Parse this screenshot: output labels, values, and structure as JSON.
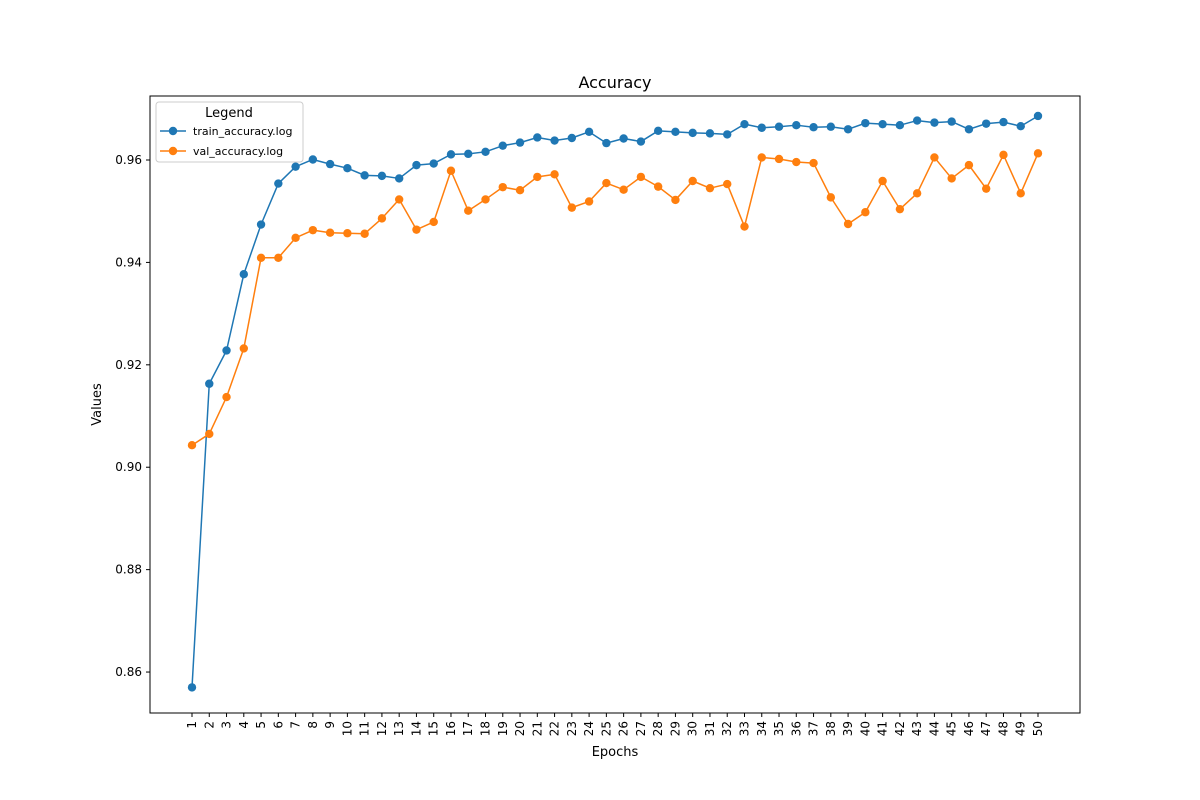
{
  "chart_data": {
    "type": "line",
    "title": "Accuracy",
    "xlabel": "Epochs",
    "ylabel": "Values",
    "x": [
      1,
      2,
      3,
      4,
      5,
      6,
      7,
      8,
      9,
      10,
      11,
      12,
      13,
      14,
      15,
      16,
      17,
      18,
      19,
      20,
      21,
      22,
      23,
      24,
      25,
      26,
      27,
      28,
      29,
      30,
      31,
      32,
      33,
      34,
      35,
      36,
      37,
      38,
      39,
      40,
      41,
      42,
      43,
      44,
      45,
      46,
      47,
      48,
      49,
      50
    ],
    "ylim": [
      0.852,
      0.9725
    ],
    "yticks": [
      "0.86",
      "0.88",
      "0.90",
      "0.92",
      "0.94",
      "0.96"
    ],
    "grid": false,
    "markers": "circle",
    "legend": {
      "title": "Legend",
      "position": "top-left"
    },
    "series": [
      {
        "name": "train_accuracy.log",
        "color": "#1f77b4",
        "values": [
          0.857,
          0.9163,
          0.9228,
          0.9377,
          0.9474,
          0.9554,
          0.9587,
          0.9601,
          0.9592,
          0.9584,
          0.957,
          0.9569,
          0.9564,
          0.959,
          0.9593,
          0.9611,
          0.9612,
          0.9616,
          0.9628,
          0.9634,
          0.9644,
          0.9638,
          0.9643,
          0.9655,
          0.9633,
          0.9642,
          0.9636,
          0.9657,
          0.9655,
          0.9653,
          0.9652,
          0.965,
          0.967,
          0.9663,
          0.9665,
          0.9668,
          0.9664,
          0.9665,
          0.966,
          0.9672,
          0.967,
          0.9668,
          0.9677,
          0.9673,
          0.9675,
          0.966,
          0.9671,
          0.9674,
          0.9666,
          0.9686
        ]
      },
      {
        "name": "val_accuracy.log",
        "color": "#ff7f0e",
        "values": [
          0.9043,
          0.9065,
          0.9137,
          0.9232,
          0.9409,
          0.9409,
          0.9448,
          0.9463,
          0.9458,
          0.9457,
          0.9456,
          0.9486,
          0.9523,
          0.9464,
          0.9479,
          0.9579,
          0.9501,
          0.9523,
          0.9547,
          0.9541,
          0.9567,
          0.9572,
          0.9507,
          0.9519,
          0.9555,
          0.9542,
          0.9567,
          0.9548,
          0.9522,
          0.9559,
          0.9545,
          0.9553,
          0.947,
          0.9605,
          0.9602,
          0.9596,
          0.9594,
          0.9527,
          0.9475,
          0.9498,
          0.9559,
          0.9504,
          0.9535,
          0.9605,
          0.9564,
          0.959,
          0.9544,
          0.961,
          0.9535,
          0.9613
        ]
      }
    ]
  }
}
